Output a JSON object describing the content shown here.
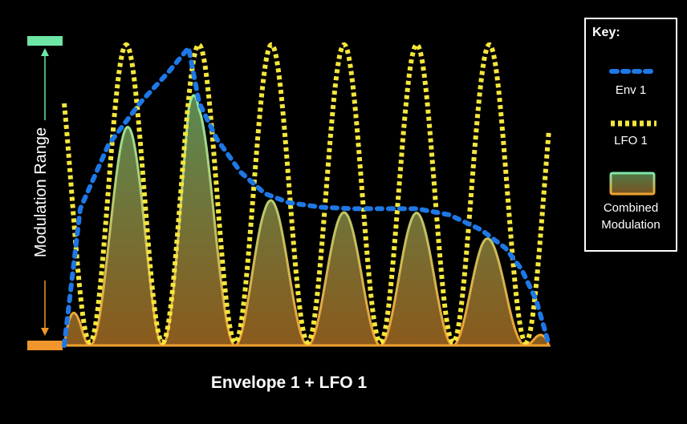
{
  "chart": {
    "title": "Envelope 1 + LFO 1",
    "range_label": "Modulation Range",
    "colors": {
      "background": "#000000",
      "env": "#1e78e6",
      "lfo": "#f5e63c",
      "combined_top": "#82e6a5",
      "combined_bottom": "#f0a030",
      "range_top": "#6ee6a5",
      "range_bottom": "#f0962d"
    }
  },
  "key": {
    "title": "Key:",
    "items": [
      {
        "label": "Env 1",
        "style": "dashed-blue"
      },
      {
        "label": "LFO 1",
        "style": "dotted-yellow"
      },
      {
        "label": "Combined Modulation",
        "style": "gradient-swatch"
      }
    ]
  },
  "chart_data": {
    "type": "line",
    "title": "Envelope 1 + LFO 1",
    "ylabel": "Modulation Range",
    "series": [
      {
        "name": "Env 1",
        "shape": "attack-decay-sustain-release envelope"
      },
      {
        "name": "LFO 1",
        "shape": "periodic oscillation, 6 peaks"
      },
      {
        "name": "Combined Modulation",
        "shape": "LFO 1 scaled by Env 1"
      }
    ],
    "legend": "right"
  }
}
